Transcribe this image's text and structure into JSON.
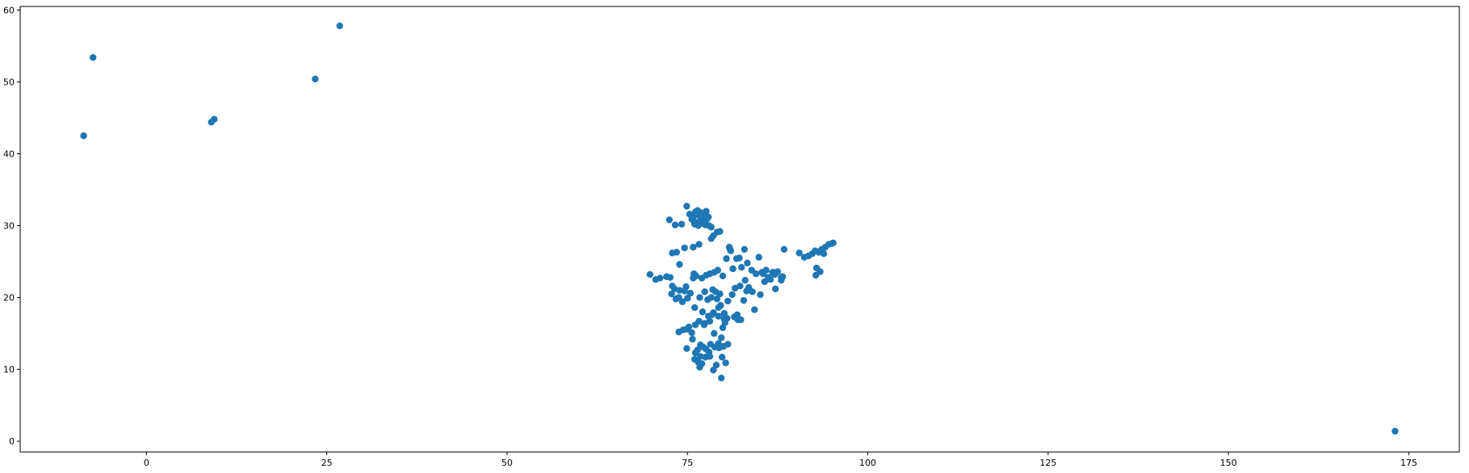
{
  "chart_data": {
    "type": "scatter",
    "title": "",
    "xlabel": "",
    "ylabel": "",
    "xlim": [
      -17.5,
      182
    ],
    "ylim": [
      -1.5,
      60.5
    ],
    "xticks": [
      0,
      25,
      50,
      75,
      100,
      125,
      150,
      175
    ],
    "yticks": [
      0,
      10,
      20,
      30,
      40,
      50,
      60
    ],
    "grid": false,
    "legend": "none",
    "marker_color": "#1f77b4",
    "series": [
      {
        "x": [
          -8.7,
          -7.4,
          9,
          9.4,
          23.4,
          26.8,
          173.1,
          74.9,
          75.3,
          75.8,
          76.1,
          76.4,
          76.7,
          77.0,
          77.3,
          77.6,
          77.9,
          75.9,
          76.3,
          76.8,
          77.2,
          77.7,
          76.0,
          76.5,
          77.1,
          75.6,
          76.2,
          76.9,
          77.5,
          78.0,
          78.3,
          74.2,
          73.3,
          72.5,
          72.9,
          73.5,
          73.9,
          74.6,
          75.8,
          76.6,
          79.1,
          79.5,
          78.6,
          78.3,
          80.8,
          80.9,
          81.0,
          81.8,
          82.9,
          84.9,
          85.3,
          85.9,
          86.5,
          87.5,
          88.0,
          88.2,
          88.4,
          85.5,
          86.9,
          83.3,
          82.2,
          82.5,
          80.4,
          81.3,
          83.0,
          83.9,
          84.5,
          85.7,
          86.2,
          86.8,
          87.1,
          88.0,
          90.5,
          91.2,
          91.8,
          92.3,
          92.7,
          93.2,
          93.6,
          94.1,
          94.6,
          95.0,
          95.2,
          93.9,
          92.9,
          92.8,
          93.4,
          69.8,
          70.6,
          71.2,
          72.1,
          72.6,
          72.9,
          73.2,
          72.8,
          73.4,
          73.8,
          74.3,
          74.6,
          75.0,
          75.4,
          73.9,
          74.8,
          75.8,
          75.9,
          76.2,
          77.0,
          77.6,
          78.1,
          78.7,
          79.2,
          79.9,
          78.5,
          78.9,
          79.5,
          79.1,
          78.3,
          77.4,
          76.7,
          77.8,
          79.6,
          80.6,
          81.2,
          81.6,
          82.3,
          83.2,
          83.5,
          82.8,
          84.0,
          80.1,
          79.3,
          80.3,
          74.9,
          75.6,
          76.1,
          76.6,
          77.3,
          77.9,
          78.6,
          79.3,
          80.1,
          80.2,
          79.9,
          79.7,
          79.3,
          78.8,
          78.2,
          78.0,
          77.6,
          77.2,
          76.8,
          76.4,
          76.1,
          76.0,
          76.5,
          76.8,
          77.0,
          76.7,
          77.5,
          78.1,
          82.0,
          81.5,
          80.5,
          78.4,
          77.1,
          76.0,
          75.7,
          74.9,
          73.8,
          74.4,
          75.2,
          77.4,
          78.1,
          78.7,
          79.4,
          80.0,
          80.6,
          79.0,
          80.3,
          79.8,
          82.4,
          84.3,
          85.1,
          87.2,
          78.6,
          79.7,
          81.9
        ],
        "y": [
          42.5,
          53.4,
          44.4,
          44.8,
          50.4,
          57.8,
          1.4,
          32.7,
          31.6,
          31.2,
          31.9,
          32.1,
          31.4,
          31.0,
          31.7,
          32.0,
          31.2,
          30.6,
          30.4,
          30.8,
          30.5,
          30.9,
          30.2,
          30.0,
          30.3,
          30.9,
          31.5,
          31.8,
          30.1,
          30.0,
          29.8,
          30.2,
          30.1,
          30.8,
          26.2,
          26.3,
          24.6,
          26.9,
          27.0,
          27.4,
          29.1,
          29.2,
          28.6,
          28.2,
          27.0,
          26.7,
          26.5,
          25.4,
          26.7,
          25.6,
          23.5,
          23.8,
          22.5,
          23.6,
          22.8,
          22.9,
          26.7,
          23.3,
          23.5,
          24.8,
          25.5,
          24.2,
          25.4,
          24.0,
          22.4,
          23.8,
          23.3,
          22.2,
          22.8,
          23.5,
          23.2,
          22.4,
          26.2,
          25.6,
          25.8,
          26.1,
          26.5,
          26.3,
          26.7,
          27.0,
          27.4,
          27.5,
          27.6,
          26.1,
          24.1,
          23.1,
          23.6,
          23.2,
          22.5,
          22.7,
          22.9,
          22.8,
          21.6,
          21.2,
          20.5,
          19.8,
          20.0,
          19.4,
          20.9,
          19.9,
          20.6,
          21.0,
          21.5,
          22.7,
          23.3,
          23.0,
          22.7,
          23.1,
          23.3,
          23.5,
          23.8,
          23.0,
          21.1,
          20.8,
          20.5,
          19.8,
          20.0,
          20.8,
          20.0,
          19.7,
          18.9,
          19.5,
          20.4,
          21.3,
          21.6,
          20.9,
          21.4,
          19.6,
          20.8,
          17.8,
          17.4,
          17.2,
          15.6,
          15.1,
          16.2,
          16.7,
          16.2,
          17.4,
          17.9,
          18.6,
          17.0,
          16.5,
          15.8,
          14.4,
          13.6,
          13.1,
          13.5,
          12.4,
          12.8,
          13.1,
          13.4,
          12.7,
          12.3,
          11.4,
          11.0,
          11.8,
          10.8,
          10.3,
          11.7,
          11.8,
          16.9,
          17.3,
          17.1,
          17.6,
          18.0,
          18.6,
          14.2,
          12.9,
          15.2,
          15.5,
          15.9,
          16.4,
          16.7,
          15.0,
          13.0,
          13.2,
          13.5,
          10.6,
          10.9,
          11.7,
          16.9,
          18.3,
          20.4,
          21.2,
          9.9,
          8.8,
          17.6
        ]
      }
    ]
  }
}
